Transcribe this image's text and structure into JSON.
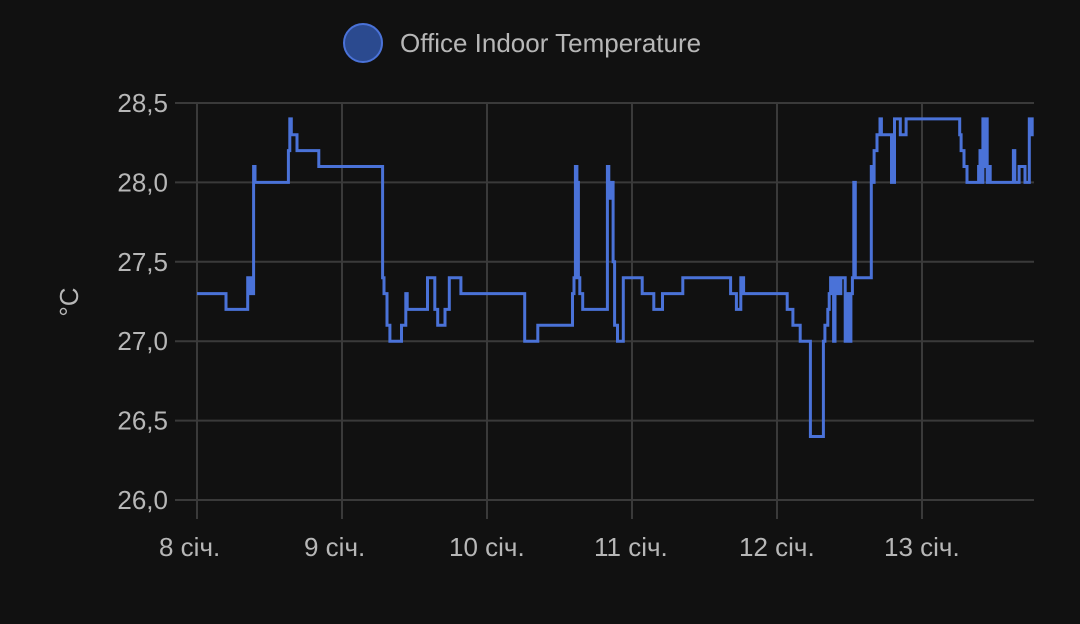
{
  "chart_data": {
    "type": "line",
    "title": "",
    "ylabel": "°C",
    "xlabel": "",
    "ylim": [
      26.0,
      28.5
    ],
    "xlim": [
      8.0,
      13.77
    ],
    "grid": true,
    "legend_position": "top",
    "y_ticks": [
      {
        "value": 26.0,
        "label": "26,0"
      },
      {
        "value": 26.5,
        "label": "26,5"
      },
      {
        "value": 27.0,
        "label": "27,0"
      },
      {
        "value": 27.5,
        "label": "27,5"
      },
      {
        "value": 28.0,
        "label": "28,0"
      },
      {
        "value": 28.5,
        "label": "28,5"
      }
    ],
    "x_ticks": [
      {
        "value": 8,
        "label": "8 січ."
      },
      {
        "value": 9,
        "label": "9 січ."
      },
      {
        "value": 10,
        "label": "10 січ."
      },
      {
        "value": 11,
        "label": "11 січ."
      },
      {
        "value": 12,
        "label": "12 січ."
      },
      {
        "value": 13,
        "label": "13 січ."
      }
    ],
    "series": [
      {
        "name": "Office Indoor Temperature",
        "color": "#4a72d8",
        "legend_fill": "#2b4a8f",
        "step": true,
        "x": [
          8.0,
          8.2,
          8.35,
          8.37,
          8.39,
          8.4,
          8.63,
          8.64,
          8.65,
          8.69,
          8.71,
          8.84,
          9.28,
          9.29,
          9.31,
          9.33,
          9.41,
          9.44,
          9.45,
          9.59,
          9.64,
          9.66,
          9.71,
          9.74,
          9.82,
          9.88,
          10.26,
          10.28,
          10.35,
          10.42,
          10.59,
          10.6,
          10.61,
          10.62,
          10.63,
          10.64,
          10.66,
          10.68,
          10.71,
          10.83,
          10.84,
          10.85,
          10.87,
          10.88,
          10.9,
          10.94,
          10.98,
          11.07,
          11.15,
          11.21,
          11.35,
          11.4,
          11.68,
          11.72,
          11.75,
          11.77,
          11.8,
          12.07,
          12.11,
          12.16,
          12.23,
          12.32,
          12.33,
          12.35,
          12.36,
          12.37,
          12.38,
          12.39,
          12.4,
          12.42,
          12.43,
          12.44,
          12.47,
          12.48,
          12.5,
          12.51,
          12.52,
          12.53,
          12.54,
          12.55,
          12.58,
          12.65,
          12.66,
          12.67,
          12.69,
          12.71,
          12.72,
          12.75,
          12.79,
          12.81,
          12.85,
          12.89,
          12.96,
          13.26,
          13.27,
          13.29,
          13.31,
          13.39,
          13.4,
          13.41,
          13.42,
          13.43,
          13.44,
          13.45,
          13.46,
          13.47,
          13.53,
          13.63,
          13.64,
          13.67,
          13.71,
          13.74,
          13.76,
          13.77
        ],
        "y": [
          27.3,
          27.2,
          27.4,
          27.3,
          28.1,
          28.0,
          28.2,
          28.4,
          28.3,
          28.2,
          28.2,
          28.1,
          27.4,
          27.3,
          27.1,
          27.0,
          27.1,
          27.3,
          27.2,
          27.4,
          27.2,
          27.1,
          27.2,
          27.4,
          27.3,
          27.3,
          27.0,
          27.0,
          27.1,
          27.1,
          27.3,
          27.4,
          28.1,
          28.0,
          27.4,
          27.3,
          27.2,
          27.2,
          27.2,
          28.1,
          27.9,
          28.0,
          27.5,
          27.1,
          27.0,
          27.4,
          27.4,
          27.3,
          27.2,
          27.3,
          27.4,
          27.4,
          27.3,
          27.2,
          27.4,
          27.3,
          27.3,
          27.2,
          27.1,
          27.0,
          26.4,
          27.0,
          27.1,
          27.2,
          27.3,
          27.4,
          27.3,
          27.0,
          27.4,
          27.3,
          27.3,
          27.4,
          27.0,
          27.3,
          27.0,
          27.3,
          27.4,
          28.0,
          27.4,
          27.4,
          27.4,
          28.1,
          28.0,
          28.2,
          28.3,
          28.4,
          28.3,
          28.3,
          28.0,
          28.4,
          28.3,
          28.4,
          28.4,
          28.3,
          28.2,
          28.1,
          28.0,
          28.1,
          28.2,
          28.0,
          28.4,
          28.1,
          28.4,
          28.0,
          28.1,
          28.0,
          28.0,
          28.2,
          28.0,
          28.1,
          28.0,
          28.4,
          28.3,
          28.3
        ]
      }
    ]
  }
}
